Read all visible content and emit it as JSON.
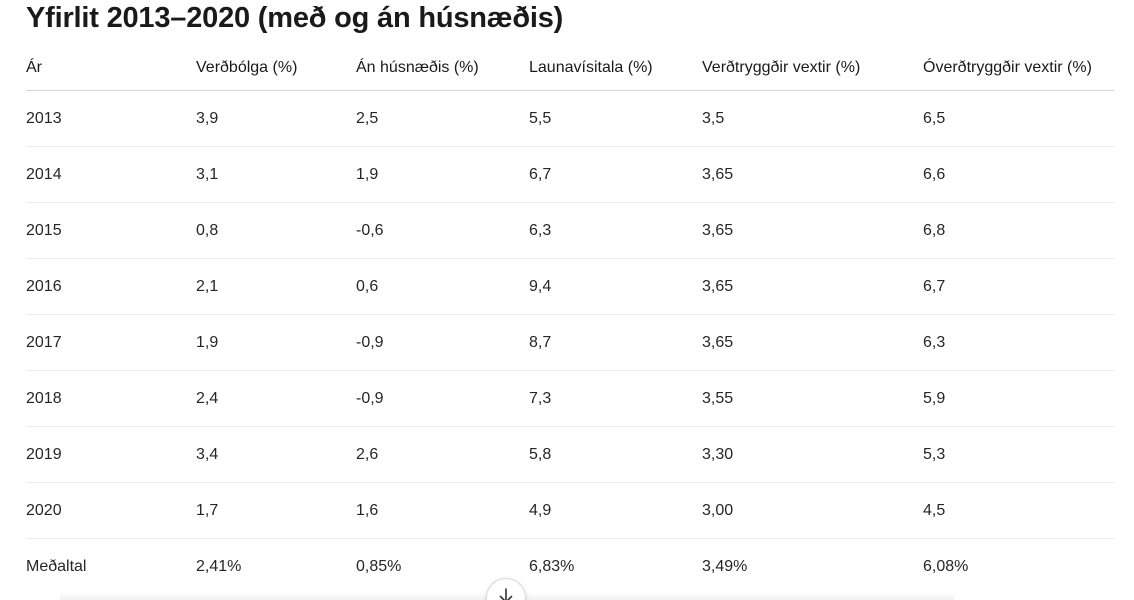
{
  "title": "Yfirlit 2013–2020 (með og án húsnæðis)",
  "table": {
    "headers": [
      "Ár",
      "Verðbólga (%)",
      "Án húsnæðis (%)",
      "Launavísitala (%)",
      "Verðtryggðir vextir (%)",
      "Óverðtryggðir vextir (%)"
    ],
    "rows": [
      [
        "2013",
        "3,9",
        "2,5",
        "5,5",
        "3,5",
        "6,5"
      ],
      [
        "2014",
        "3,1",
        "1,9",
        "6,7",
        "3,65",
        "6,6"
      ],
      [
        "2015",
        "0,8",
        "-0,6",
        "6,3",
        "3,65",
        "6,8"
      ],
      [
        "2016",
        "2,1",
        "0,6",
        "9,4",
        "3,65",
        "6,7"
      ],
      [
        "2017",
        "1,9",
        "-0,9",
        "8,7",
        "3,65",
        "6,3"
      ],
      [
        "2018",
        "2,4",
        "-0,9",
        "7,3",
        "3,55",
        "5,9"
      ],
      [
        "2019",
        "3,4",
        "2,6",
        "5,8",
        "3,30",
        "5,3"
      ],
      [
        "2020",
        "1,7",
        "1,6",
        "4,9",
        "3,00",
        "4,5"
      ],
      [
        "Meðaltal",
        "2,41%",
        "0,85%",
        "6,83%",
        "3,49%",
        "6,08%"
      ]
    ]
  },
  "scroll_button": {
    "icon": "arrow-down-icon"
  }
}
